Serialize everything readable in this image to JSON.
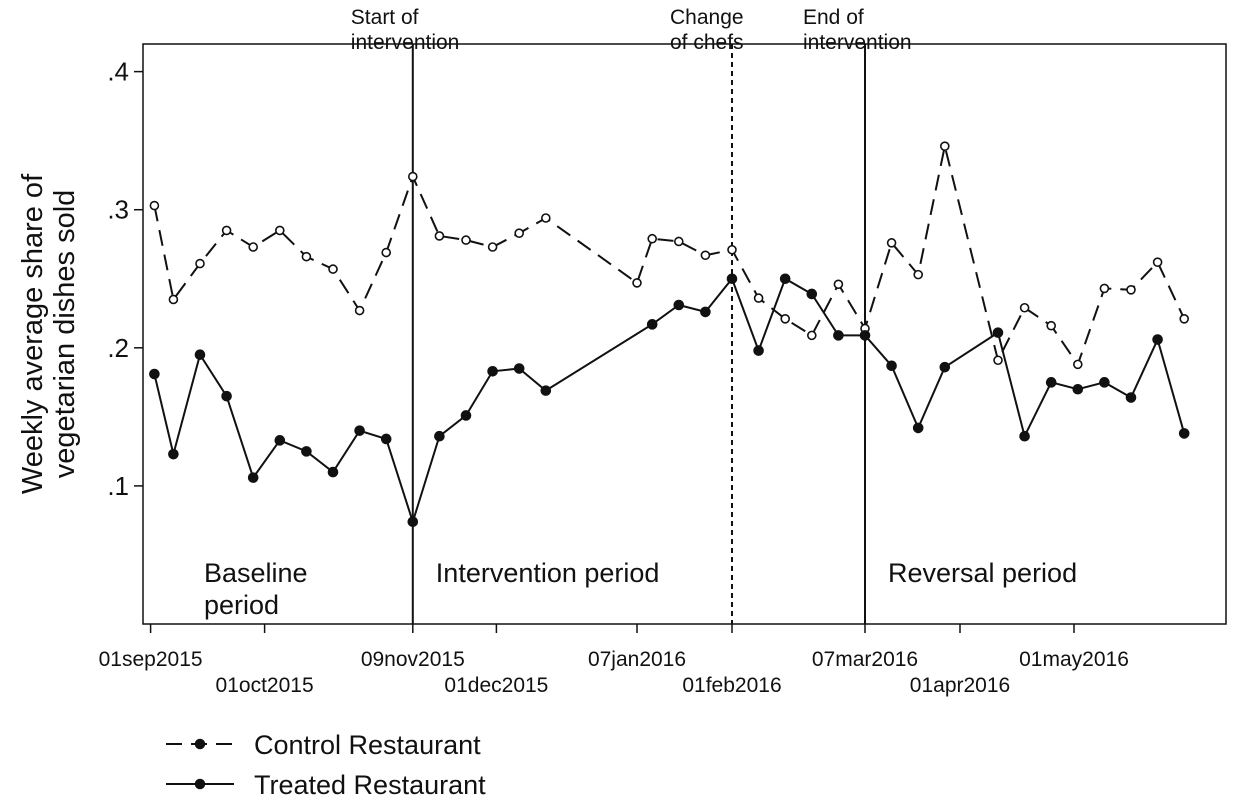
{
  "chart_data": {
    "type": "line",
    "ylabel": "Weekly average share of vegetarian dishes sold",
    "ylim": [
      0,
      0.42
    ],
    "yticks": [
      {
        "value": 0.1,
        "label": ".1"
      },
      {
        "value": 0.2,
        "label": ".2"
      },
      {
        "value": 0.3,
        "label": ".3"
      },
      {
        "value": 0.4,
        "label": ".4"
      }
    ],
    "xlim": [
      "2015-08-30",
      "2016-06-10"
    ],
    "xticks": [
      {
        "date": "2015-09-01",
        "label": "01sep2015",
        "row": 1
      },
      {
        "date": "2015-10-01",
        "label": "01oct2015",
        "row": 2
      },
      {
        "date": "2015-11-09",
        "label": "09nov2015",
        "row": 1
      },
      {
        "date": "2015-12-01",
        "label": "01dec2015",
        "row": 2
      },
      {
        "date": "2016-01-07",
        "label": "07jan2016",
        "row": 1
      },
      {
        "date": "2016-02-01",
        "label": "01feb2016",
        "row": 2
      },
      {
        "date": "2016-03-07",
        "label": "07mar2016",
        "row": 1
      },
      {
        "date": "2016-04-01",
        "label": "01apr2016",
        "row": 2
      },
      {
        "date": "2016-05-01",
        "label": "01may2016",
        "row": 1
      }
    ],
    "vlines": [
      {
        "date": "2015-11-09",
        "style": "solid",
        "label": [
          "Start of",
          "intervention"
        ]
      },
      {
        "date": "2016-02-01",
        "style": "dashed",
        "label": [
          "Change",
          "of chefs"
        ]
      },
      {
        "date": "2016-03-07",
        "style": "solid",
        "label": [
          "End of",
          "intervention"
        ]
      }
    ],
    "period_labels": [
      {
        "lines": [
          "Baseline",
          "period"
        ],
        "date": "2015-09-14"
      },
      {
        "lines": [
          "Intervention period"
        ],
        "date": "2015-11-14"
      },
      {
        "lines": [
          "Reversal period"
        ],
        "date": "2016-03-12"
      }
    ],
    "series": [
      {
        "name": "Control Restaurant",
        "style": "dashed",
        "marker": "hollow",
        "points": [
          [
            "2015-09-02",
            0.303
          ],
          [
            "2015-09-07",
            0.235
          ],
          [
            "2015-09-14",
            0.261
          ],
          [
            "2015-09-21",
            0.285
          ],
          [
            "2015-09-28",
            0.273
          ],
          [
            "2015-10-05",
            0.285
          ],
          [
            "2015-10-12",
            0.266
          ],
          [
            "2015-10-19",
            0.257
          ],
          [
            "2015-10-26",
            0.227
          ],
          [
            "2015-11-02",
            0.269
          ],
          [
            "2015-11-09",
            0.324
          ],
          [
            "2015-11-16",
            0.281
          ],
          [
            "2015-11-23",
            0.278
          ],
          [
            "2015-11-30",
            0.273
          ],
          [
            "2015-12-07",
            0.283
          ],
          [
            "2015-12-14",
            0.294
          ],
          [
            "2016-01-07",
            0.247
          ],
          [
            "2016-01-11",
            0.279
          ],
          [
            "2016-01-18",
            0.277
          ],
          [
            "2016-01-25",
            0.267
          ],
          [
            "2016-02-01",
            0.271
          ],
          [
            "2016-02-08",
            0.236
          ],
          [
            "2016-02-15",
            0.221
          ],
          [
            "2016-02-22",
            0.209
          ],
          [
            "2016-02-29",
            0.246
          ],
          [
            "2016-03-07",
            0.214
          ],
          [
            "2016-03-14",
            0.276
          ],
          [
            "2016-03-21",
            0.253
          ],
          [
            "2016-03-28",
            0.346
          ],
          [
            "2016-04-11",
            0.191
          ],
          [
            "2016-04-18",
            0.229
          ],
          [
            "2016-04-25",
            0.216
          ],
          [
            "2016-05-02",
            0.188
          ],
          [
            "2016-05-09",
            0.243
          ],
          [
            "2016-05-16",
            0.242
          ],
          [
            "2016-05-23",
            0.262
          ],
          [
            "2016-05-30",
            0.221
          ]
        ]
      },
      {
        "name": "Treated Restaurant",
        "style": "solid",
        "marker": "filled",
        "points": [
          [
            "2015-09-02",
            0.181
          ],
          [
            "2015-09-07",
            0.123
          ],
          [
            "2015-09-14",
            0.195
          ],
          [
            "2015-09-21",
            0.165
          ],
          [
            "2015-09-28",
            0.106
          ],
          [
            "2015-10-05",
            0.133
          ],
          [
            "2015-10-12",
            0.125
          ],
          [
            "2015-10-19",
            0.11
          ],
          [
            "2015-10-26",
            0.14
          ],
          [
            "2015-11-02",
            0.134
          ],
          [
            "2015-11-09",
            0.074
          ],
          [
            "2015-11-16",
            0.136
          ],
          [
            "2015-11-23",
            0.151
          ],
          [
            "2015-11-30",
            0.183
          ],
          [
            "2015-12-07",
            0.185
          ],
          [
            "2015-12-14",
            0.169
          ],
          [
            "2016-01-11",
            0.217
          ],
          [
            "2016-01-18",
            0.231
          ],
          [
            "2016-01-25",
            0.226
          ],
          [
            "2016-02-01",
            0.25
          ],
          [
            "2016-02-08",
            0.198
          ],
          [
            "2016-02-15",
            0.25
          ],
          [
            "2016-02-22",
            0.239
          ],
          [
            "2016-02-29",
            0.209
          ],
          [
            "2016-03-07",
            0.209
          ],
          [
            "2016-03-14",
            0.187
          ],
          [
            "2016-03-21",
            0.142
          ],
          [
            "2016-03-28",
            0.186
          ],
          [
            "2016-04-11",
            0.211
          ],
          [
            "2016-04-18",
            0.136
          ],
          [
            "2016-04-25",
            0.175
          ],
          [
            "2016-05-02",
            0.17
          ],
          [
            "2016-05-09",
            0.175
          ],
          [
            "2016-05-16",
            0.164
          ],
          [
            "2016-05-23",
            0.206
          ],
          [
            "2016-05-30",
            0.138
          ]
        ]
      }
    ],
    "legend_position": "bottom-left"
  }
}
